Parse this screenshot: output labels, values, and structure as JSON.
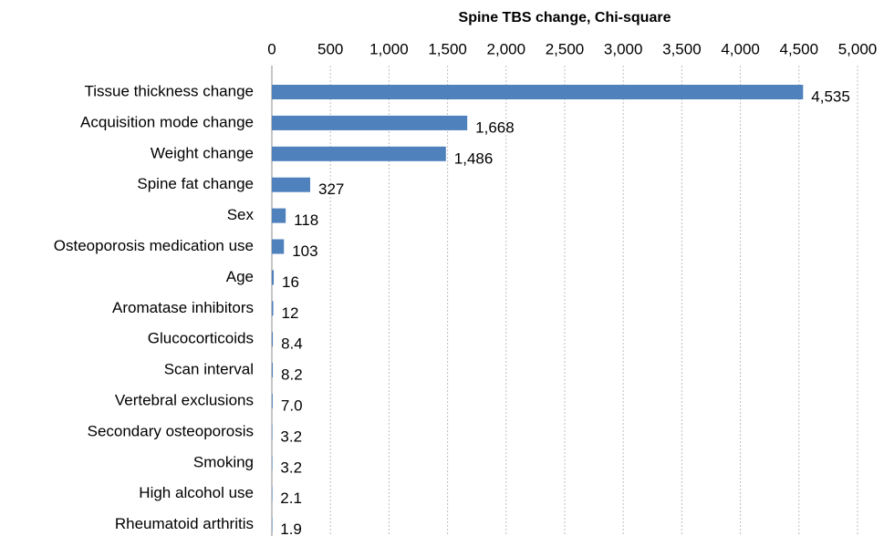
{
  "chart_data": {
    "type": "hbar",
    "x_label": "Spine TBS change, Chi-square",
    "categories": [
      "Tissue thickness change",
      "Acquisition mode change",
      "Weight change",
      "Spine fat change",
      "Sex",
      "Osteoporosis medication use",
      "Age",
      "Aromatase inhibitors",
      "Glucocorticoids",
      "Scan interval",
      "Vertebral exclusions",
      "Secondary osteoporosis",
      "Smoking",
      "High alcohol use",
      "Rheumatoid arthritis"
    ],
    "values": [
      4535,
      1668,
      1486,
      327,
      118,
      103,
      16,
      12,
      8.4,
      8.2,
      7,
      3.2,
      3.2,
      2.1,
      1.9
    ],
    "value_labels": [
      "4,535",
      "1,668",
      "1,486",
      "327",
      "118",
      "103",
      "16",
      "12",
      "8.4",
      "8.2",
      "7.0",
      "3.2",
      "3.2",
      "2.1",
      "1.9"
    ],
    "color": "#4f81bd",
    "xlim": [
      0,
      5000
    ],
    "xticks": [
      0,
      500,
      {
        "value": 1000,
        "label": "1,000"
      },
      {
        "value": 1500,
        "label": "1,500"
      },
      {
        "value": 2000,
        "label": "2,000"
      },
      {
        "value": 2500,
        "label": "2,500"
      },
      {
        "value": 3000,
        "label": "3,000"
      },
      {
        "value": 3500,
        "label": "3,500"
      },
      {
        "value": 4000,
        "label": "4,000"
      },
      {
        "value": 4500,
        "label": "4,500"
      },
      {
        "value": 5000,
        "label": "5,000"
      }
    ],
    "grid": true
  }
}
